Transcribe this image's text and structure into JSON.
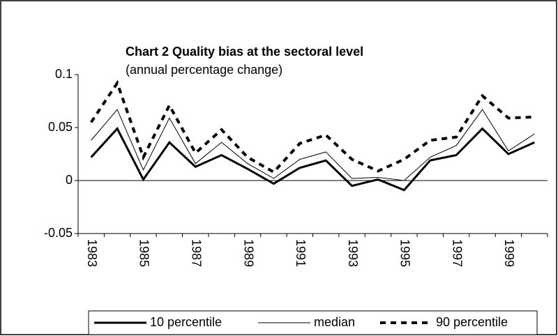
{
  "chart_data": {
    "type": "line",
    "title": "Chart 2 Quality bias at the sectoral level",
    "subtitle": "(annual percentage change)",
    "categories": [
      "1983",
      null,
      "1985",
      null,
      "1987",
      null,
      "1989",
      null,
      "1991",
      null,
      "1993",
      null,
      "1995",
      null,
      "1997",
      null,
      "1999",
      null
    ],
    "series": [
      {
        "name": "10 percentile",
        "color": "#000000",
        "style": "thick",
        "values": [
          0.022,
          0.049,
          0.001,
          0.036,
          0.013,
          0.024,
          0.011,
          -0.003,
          0.012,
          0.019,
          -0.005,
          0.001,
          -0.009,
          0.019,
          0.024,
          0.049,
          0.025,
          0.036
        ]
      },
      {
        "name": "median",
        "color": "#000000",
        "style": "thin",
        "values": [
          0.038,
          0.067,
          0.01,
          0.059,
          0.016,
          0.036,
          0.016,
          0.002,
          0.02,
          0.027,
          0.002,
          0.003,
          0.0,
          0.022,
          0.033,
          0.067,
          0.028,
          0.044
        ]
      },
      {
        "name": "90 percentile",
        "color": "#000000",
        "style": "dashed",
        "values": [
          0.055,
          0.092,
          0.022,
          0.071,
          0.026,
          0.048,
          0.022,
          0.008,
          0.035,
          0.043,
          0.02,
          0.009,
          0.02,
          0.038,
          0.041,
          0.08,
          0.059,
          0.06
        ]
      }
    ],
    "ylim": [
      -0.05,
      0.1
    ],
    "yticks": [
      -0.05,
      0,
      0.05,
      0.1
    ],
    "legend": "bottom"
  }
}
